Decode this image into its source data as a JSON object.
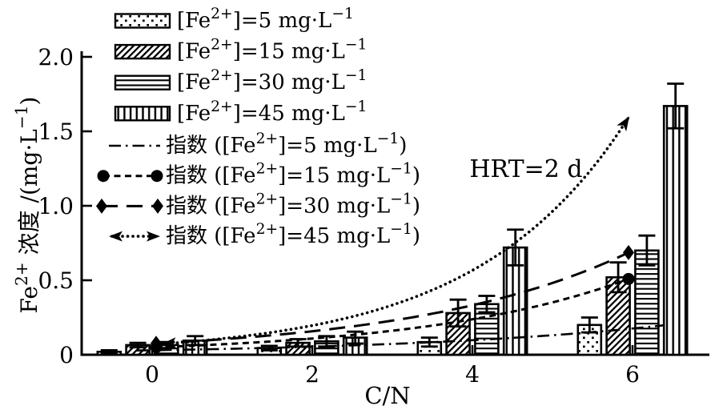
{
  "figure": {
    "background": "#ffffff",
    "ink": "#000000"
  },
  "chart_data": {
    "type": "bar",
    "title": "",
    "xlabel": "C/N",
    "ylabel": "Fe²⁺ 浓度 /(mg·L⁻¹)",
    "categories": [
      0,
      2,
      4,
      6
    ],
    "x_tick_labels": [
      "0",
      "2",
      "4",
      "6"
    ],
    "y_tick_labels": [
      "0",
      "0.5",
      "1.0",
      "1.5",
      "2.0"
    ],
    "y_tick_values": [
      0,
      0.5,
      1.0,
      1.5,
      2.0
    ],
    "ylim": [
      0,
      2.0
    ],
    "grid": "off",
    "legend_position": "top-left",
    "series": [
      {
        "name": "[Fe²⁺]=5 mg·L⁻¹",
        "pattern": "dots",
        "values": [
          0.02,
          0.045,
          0.085,
          0.2
        ],
        "errors": [
          0.01,
          0.015,
          0.03,
          0.05
        ]
      },
      {
        "name": "[Fe²⁺]=15 mg·L⁻¹",
        "pattern": "hatch",
        "values": [
          0.065,
          0.08,
          0.28,
          0.52
        ],
        "errors": [
          0.015,
          0.025,
          0.09,
          0.1
        ]
      },
      {
        "name": "[Fe²⁺]=30 mg·L⁻¹",
        "pattern": "hlines",
        "values": [
          0.065,
          0.09,
          0.34,
          0.7
        ],
        "errors": [
          0.02,
          0.035,
          0.055,
          0.1
        ]
      },
      {
        "name": "[Fe²⁺]=45 mg·L⁻¹",
        "pattern": "vlines",
        "values": [
          0.095,
          0.115,
          0.72,
          1.67
        ],
        "errors": [
          0.03,
          0.04,
          0.12,
          0.15
        ]
      }
    ],
    "curves": [
      {
        "name": "指数 ([Fe²⁺]=5 mg·L⁻¹)",
        "style": "dashdot",
        "marker": "none",
        "a": 0.03,
        "b": 0.295,
        "x_range": [
          -0.2,
          6.4
        ]
      },
      {
        "name": "指数 ([Fe²⁺]=15 mg·L⁻¹)",
        "style": "dash",
        "marker": "circle",
        "a": 0.05,
        "b": 0.39,
        "x_range": [
          0.05,
          5.95
        ]
      },
      {
        "name": "指数 ([Fe²⁺]=30 mg·L⁻¹)",
        "style": "longdash",
        "marker": "diamond",
        "a": 0.075,
        "b": 0.372,
        "x_range": [
          0.05,
          5.95
        ]
      },
      {
        "name": "指数 ([Fe²⁺]=45 mg·L⁻¹)",
        "style": "dotted",
        "marker": "arrow",
        "a": 0.068,
        "b": 0.53,
        "x_range": [
          0.12,
          5.96
        ]
      }
    ],
    "annotation": {
      "text": "HRT=2 d"
    }
  }
}
